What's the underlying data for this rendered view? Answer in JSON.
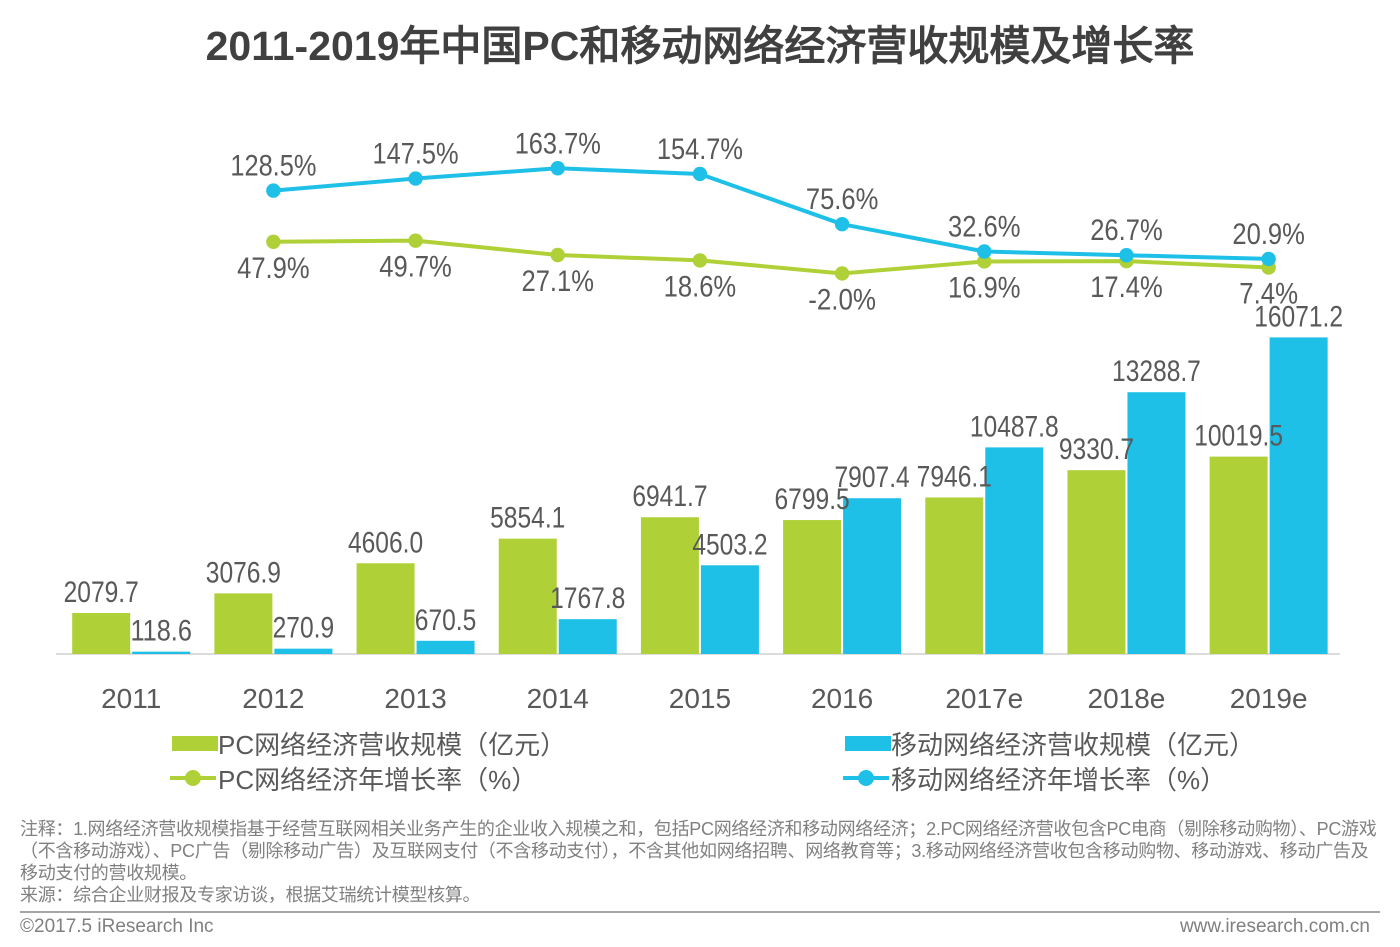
{
  "title": "2011-2019年中国PC和移动网络经济营收规模及增长率",
  "colors": {
    "pc_green": "#afd137",
    "mobile_blue": "#1fc0e8",
    "title_text": "#404040",
    "label_text": "#595959",
    "note_text": "#808080",
    "axis_line": "#d0d0d0",
    "divider": "#a6a6a6",
    "background": "#ffffff"
  },
  "chart_data": {
    "type": "combo-bar-line",
    "categories": [
      "2011",
      "2012",
      "2013",
      "2014",
      "2015",
      "2016",
      "2017e",
      "2018e",
      "2019e"
    ],
    "series": [
      {
        "name": "PC网络经济营收规模（亿元）",
        "type": "bar",
        "color_key": "pc_green",
        "values": [
          2079.7,
          3076.9,
          4606.0,
          5854.1,
          6941.7,
          6799.5,
          7946.1,
          9330.7,
          10019.5
        ]
      },
      {
        "name": "移动网络经济营收规模（亿元）",
        "type": "bar",
        "color_key": "mobile_blue",
        "values": [
          118.6,
          270.9,
          670.5,
          1767.8,
          4503.2,
          7907.4,
          10487.8,
          13288.7,
          16071.2
        ]
      },
      {
        "name": "PC网络经济年增长率（%）",
        "type": "line",
        "color_key": "pc_green",
        "label_position": "below",
        "values": [
          null,
          47.9,
          49.7,
          27.1,
          18.6,
          -2.0,
          16.9,
          17.4,
          7.4
        ]
      },
      {
        "name": "移动网络经济年增长率（%）",
        "type": "line",
        "color_key": "mobile_blue",
        "label_position": "above",
        "values": [
          null,
          128.5,
          147.5,
          163.7,
          154.7,
          75.6,
          32.6,
          26.7,
          20.9
        ]
      }
    ],
    "value_label_decimals": 1,
    "bar_axis": {
      "min": 0
    },
    "grid": false,
    "legend_position": "bottom"
  },
  "legend": {
    "items": [
      {
        "label": "PC网络经济营收规模（亿元）",
        "marker": "square",
        "color_key": "pc_green"
      },
      {
        "label": "移动网络经济营收规模（亿元）",
        "marker": "square",
        "color_key": "mobile_blue"
      },
      {
        "label": "PC网络经济年增长率（%）",
        "marker": "line-dot",
        "color_key": "pc_green"
      },
      {
        "label": "移动网络经济年增长率（%）",
        "marker": "line-dot",
        "color_key": "mobile_blue"
      }
    ]
  },
  "notes": {
    "annotation": "注释：1.网络经济营收规模指基于经营互联网相关业务产生的企业收入规模之和，包括PC网络经济和移动网络经济；2.PC网络经济营收包含PC电商（剔除移动购物）、PC游戏（不含移动游戏）、PC广告（剔除移动广告）及互联网支付（不含移动支付），不含其他如网络招聘、网络教育等；3.移动网络经济营收包含移动购物、移动游戏、移动广告及移动支付的营收规模。",
    "source": "来源：综合企业财报及专家访谈，根据艾瑞统计模型核算。"
  },
  "footer": {
    "left": "©2017.5 iResearch Inc",
    "right": "www.iresearch.com.cn"
  }
}
